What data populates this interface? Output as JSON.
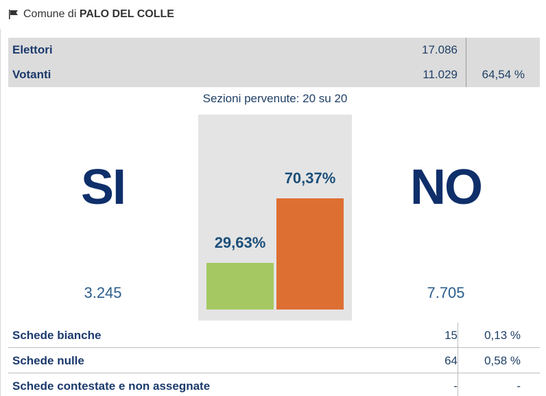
{
  "header": {
    "prefix": "Comune di",
    "name": "PALO DEL COLLE"
  },
  "summary": {
    "elettori_label": "Elettori",
    "elettori_value": "17.086",
    "votanti_label": "Votanti",
    "votanti_value": "11.029",
    "votanti_pct": "64,54 %"
  },
  "sezioni": "Sezioni pervenute: 20 su 20",
  "si": {
    "label": "SI",
    "count": "3.245",
    "pct_label": "29,63%"
  },
  "no": {
    "label": "NO",
    "count": "7.705",
    "pct_label": "70,37%"
  },
  "chart_data": {
    "type": "bar",
    "categories": [
      "SI",
      "NO"
    ],
    "values": [
      29.63,
      70.37
    ],
    "colors": [
      "#a5c863",
      "#de6f33"
    ]
  },
  "stats": [
    {
      "label": "Schede bianche",
      "value": "15",
      "pct": "0,13 %"
    },
    {
      "label": "Schede nulle",
      "value": "64",
      "pct": "0,58 %"
    },
    {
      "label": "Schede contestate e non assegnate",
      "value": "-",
      "pct": "-"
    }
  ],
  "icons": {
    "flag": "flag-icon"
  }
}
